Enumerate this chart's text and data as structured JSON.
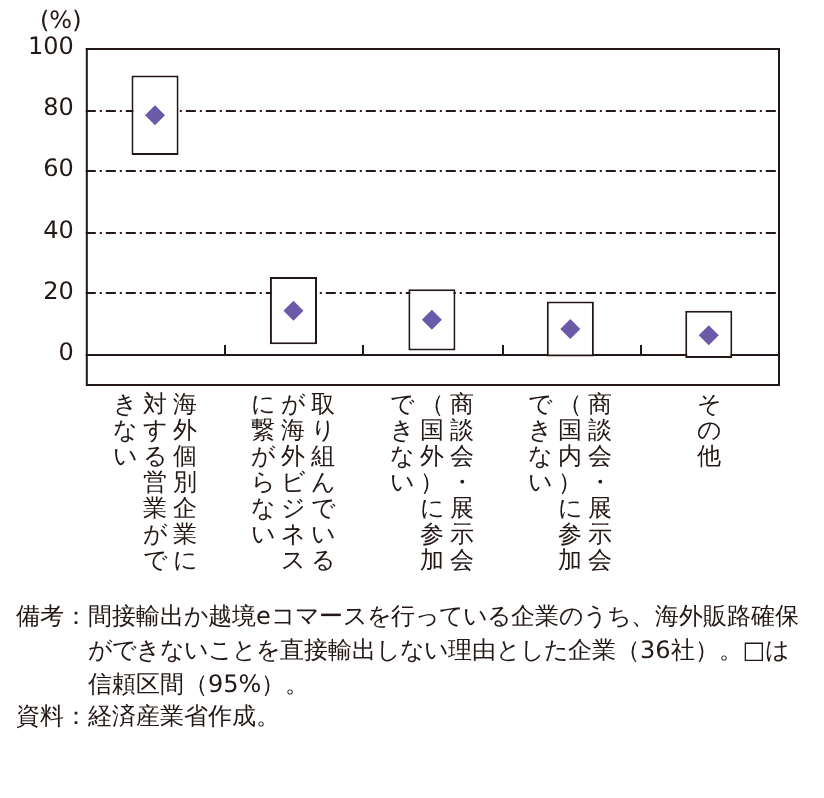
{
  "chart_data": {
    "type": "bar",
    "ylabel": "(%)",
    "categories": [
      "海外個別企業に対する営業ができない",
      "取り組んでいるが海外ビジネスに繋がらない",
      "商談会・展示会（国外）に参加できない",
      "商談会・展示会（国内）に参加できない",
      "その他"
    ],
    "series": [
      {
        "color": "#ffffff",
        "base": [
          65,
          3,
          1,
          -1,
          -1.5
        ],
        "values": [
          26,
          22,
          20,
          18,
          15.5
        ]
      },
      {
        "type": "scatter",
        "color": "#6a5aa8",
        "marker": "diamond",
        "values": [
          78,
          14,
          11,
          8,
          6
        ]
      }
    ],
    "ylim": [
      -10,
      100
    ],
    "yticks": [
      0,
      20,
      40,
      60,
      80,
      100
    ],
    "grid": "y",
    "legend": false,
    "annotations": [
      "備考：間接輸出か越境eコマースを行っている企業のうち、海外販路確保ができないことを直接輸出しない理由とした企業（36社）。□は信頼区間（95%）。",
      "資料：経済産業省作成。"
    ]
  }
}
